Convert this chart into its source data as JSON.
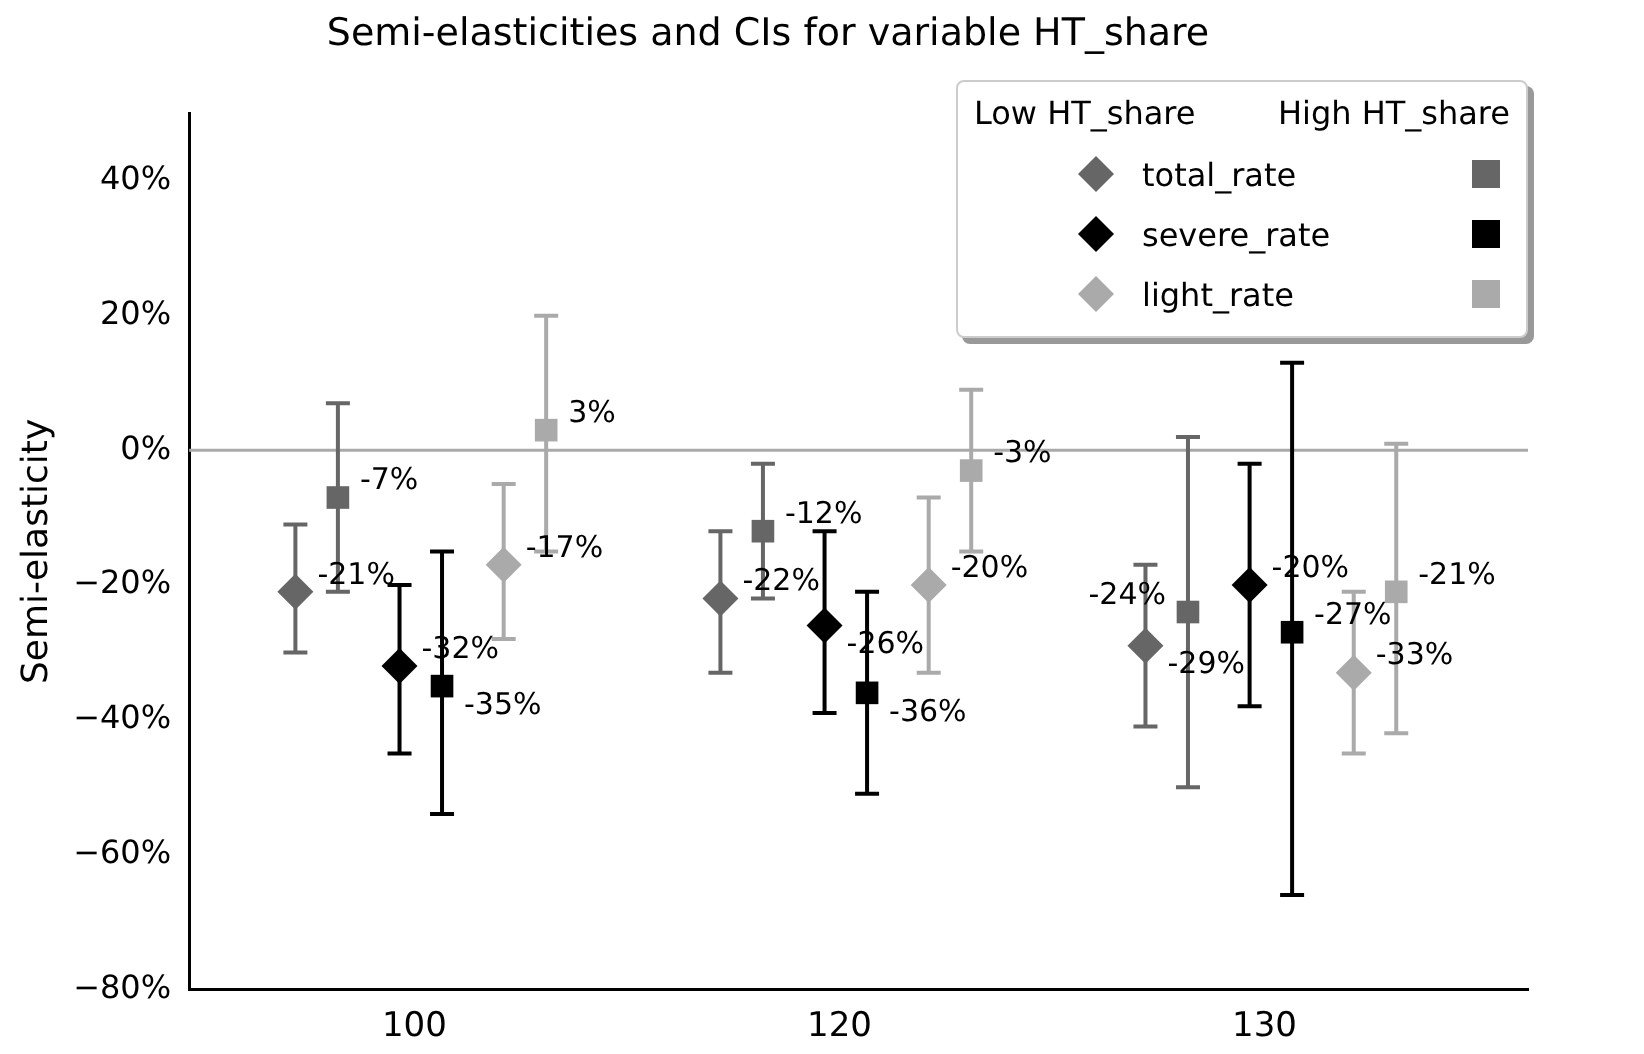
{
  "chart_data": {
    "type": "scatter",
    "title": "Semi-elasticities and CIs for variable HT_share",
    "ylabel": "Semi-elasticity",
    "categories": [
      "100",
      "120",
      "130"
    ],
    "ylim": [
      -80,
      50
    ],
    "yticks": [
      {
        "value": -80,
        "label": "−80%"
      },
      {
        "value": -60,
        "label": "−60%"
      },
      {
        "value": -40,
        "label": "−40%"
      },
      {
        "value": -20,
        "label": "−20%"
      },
      {
        "value": 0,
        "label": "0%"
      },
      {
        "value": 20,
        "label": "20%"
      },
      {
        "value": 40,
        "label": "40%"
      }
    ],
    "annotations": [
      "Low HT_share",
      "High HT_share"
    ],
    "legend": "top right",
    "ref_lines": [
      {
        "axis": "y",
        "value": 0,
        "color": "#aaaaaa"
      }
    ],
    "series": [
      {
        "name": "total_rate",
        "marker": "diamond",
        "color": "#666666",
        "values": [
          -21,
          -22,
          -29
        ],
        "errors": [
          [
            -30,
            -11
          ],
          [
            -33,
            -12
          ],
          [
            -41,
            -17
          ]
        ],
        "value_labels": [
          "-21%",
          "-22%",
          "-29%"
        ]
      },
      {
        "marker": "square",
        "color": "#666666",
        "values": [
          -7,
          -12,
          -24
        ],
        "errors": [
          [
            -21,
            7
          ],
          [
            -22,
            -2
          ],
          [
            -50,
            2
          ]
        ],
        "value_labels": [
          "-7%",
          "-12%",
          "-24%"
        ]
      },
      {
        "name": "severe_rate",
        "marker": "diamond",
        "color": "#000000",
        "values": [
          -32,
          -26,
          -20
        ],
        "errors": [
          [
            -45,
            -20
          ],
          [
            -39,
            -12
          ],
          [
            -38,
            -2
          ]
        ],
        "value_labels": [
          "-32%",
          "-26%",
          "-20%"
        ]
      },
      {
        "marker": "square",
        "color": "#000000",
        "values": [
          -35,
          -36,
          -27
        ],
        "errors": [
          [
            -54,
            -15
          ],
          [
            -51,
            -21
          ],
          [
            -66,
            13
          ]
        ],
        "value_labels": [
          "-35%",
          "-36%",
          "-27%"
        ]
      },
      {
        "name": "light_rate",
        "marker": "diamond",
        "color": "#aaaaaa",
        "values": [
          -17,
          -20,
          -33
        ],
        "errors": [
          [
            -28,
            -5
          ],
          [
            -33,
            -7
          ],
          [
            -45,
            -21
          ]
        ],
        "value_labels": [
          "-17%",
          "-20%",
          "-33%"
        ]
      },
      {
        "marker": "square",
        "color": "#aaaaaa",
        "values": [
          3,
          -3,
          -21
        ],
        "errors": [
          [
            -15,
            20
          ],
          [
            -15,
            9
          ],
          [
            -42,
            1
          ]
        ],
        "value_labels": [
          "3%",
          "-3%",
          "-21%"
        ]
      }
    ]
  }
}
